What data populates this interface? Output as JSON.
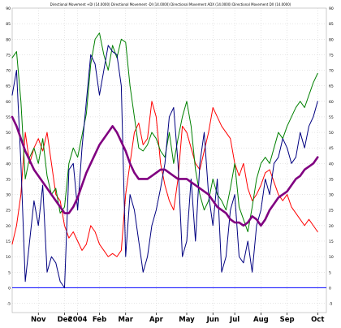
{
  "chart_data": {
    "type": "line",
    "title": "Directional Movement +DI (14.0000) Directional Movement -DI (14.0000) Directional Movement ADX (14.0000) Directional Movement DX (14.0000)",
    "xlabel": "",
    "ylabel": "",
    "ylim": [
      -8,
      90
    ],
    "y_ticks": [
      -5,
      0,
      5,
      10,
      15,
      20,
      25,
      30,
      35,
      40,
      45,
      50,
      55,
      60,
      65,
      70,
      75,
      80,
      85,
      90
    ],
    "x_tick_labels": [
      "Nov",
      "Dec",
      "2004",
      "Feb",
      "Mar",
      "Apr",
      "May",
      "Jun",
      "Jul",
      "Aug",
      "Sep",
      "Oct"
    ],
    "x_tick_positions": [
      6,
      12,
      15,
      20,
      26,
      33,
      40,
      46,
      51,
      57,
      63,
      70
    ],
    "xlim": [
      0,
      72
    ],
    "grid": true,
    "colors": {
      "plus_di": "#008000",
      "minus_di": "#ff0000",
      "adx": "#800080",
      "dx": "#000080",
      "zero_line": "#0000ff",
      "grid": "#cccccc"
    },
    "series": [
      {
        "key": "plus_di",
        "values": [
          74,
          76,
          60,
          35,
          42,
          45,
          40,
          48,
          36,
          30,
          32,
          24,
          26,
          40,
          45,
          42,
          49,
          56,
          72,
          80,
          82,
          75,
          70,
          78,
          74,
          80,
          79,
          65,
          55,
          45,
          44,
          46,
          50,
          48,
          44,
          42,
          50,
          40,
          48,
          55,
          60,
          52,
          38,
          30,
          25,
          28,
          35,
          30,
          28,
          25,
          32,
          40,
          26,
          22,
          18,
          26,
          35,
          40,
          42,
          40,
          45,
          50,
          48,
          52,
          55,
          58,
          60,
          58,
          62,
          66,
          69
        ]
      },
      {
        "key": "minus_di",
        "values": [
          14,
          20,
          30,
          50,
          40,
          45,
          48,
          44,
          50,
          40,
          30,
          28,
          20,
          16,
          18,
          15,
          12,
          14,
          20,
          18,
          14,
          12,
          10,
          11,
          10,
          12,
          30,
          40,
          50,
          53,
          46,
          48,
          60,
          55,
          40,
          33,
          28,
          25,
          35,
          52,
          50,
          45,
          40,
          38,
          44,
          50,
          58,
          55,
          52,
          50,
          48,
          40,
          36,
          40,
          32,
          28,
          30,
          33,
          37,
          38,
          34,
          30,
          28,
          30,
          26,
          24,
          22,
          20,
          22,
          20,
          18
        ]
      },
      {
        "key": "adx",
        "values": [
          55,
          52,
          48,
          44,
          41,
          38,
          36,
          34,
          32,
          30,
          28,
          26,
          24,
          24,
          26,
          29,
          33,
          37,
          40,
          43,
          46,
          48,
          50,
          52,
          50,
          47,
          44,
          40,
          37,
          35,
          35,
          35,
          36,
          37,
          38,
          38,
          37,
          36,
          35,
          35,
          35,
          34,
          33,
          32,
          31,
          30,
          28,
          26,
          25,
          24,
          22,
          21,
          21,
          20,
          21,
          23,
          22,
          20,
          22,
          25,
          27,
          29,
          30,
          31,
          33,
          35,
          36,
          38,
          39,
          40,
          42
        ]
      },
      {
        "key": "dx",
        "values": [
          62,
          70,
          40,
          2,
          15,
          28,
          20,
          33,
          5,
          10,
          8,
          2,
          0,
          38,
          40,
          25,
          45,
          60,
          75,
          72,
          62,
          70,
          78,
          76,
          75,
          65,
          10,
          30,
          25,
          15,
          5,
          10,
          20,
          25,
          32,
          40,
          55,
          58,
          40,
          10,
          15,
          35,
          15,
          40,
          50,
          30,
          20,
          35,
          5,
          10,
          25,
          30,
          10,
          8,
          15,
          5,
          20,
          25,
          35,
          30,
          40,
          42,
          48,
          45,
          40,
          42,
          50,
          45,
          52,
          55,
          60
        ]
      }
    ]
  }
}
